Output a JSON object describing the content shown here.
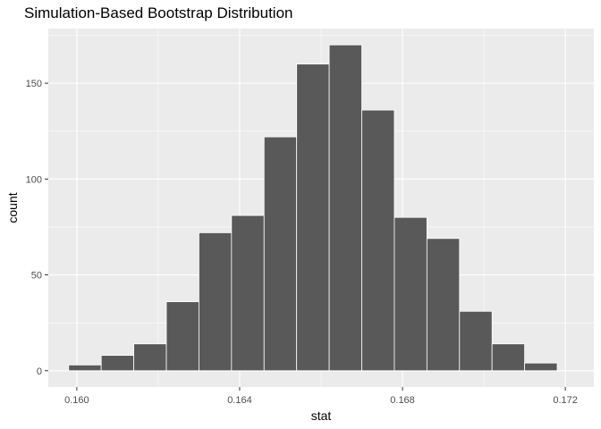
{
  "chart_data": {
    "type": "bar",
    "title": "Simulation-Based Bootstrap Distribution",
    "xlabel": "stat",
    "ylabel": "count",
    "xlim": [
      0.1593,
      0.1727
    ],
    "ylim": [
      -8.5,
      178.5
    ],
    "x_ticks": [
      0.16,
      0.164,
      0.168,
      0.172
    ],
    "x_tick_labels": [
      "0.160",
      "0.164",
      "0.168",
      "0.172"
    ],
    "y_ticks": [
      0,
      50,
      100,
      150
    ],
    "y_tick_labels": [
      "0",
      "50",
      "100",
      "150"
    ],
    "bin_width": 0.0008,
    "bins": [
      {
        "x0": 0.1598,
        "x1": 0.1606,
        "count": 3
      },
      {
        "x0": 0.1606,
        "x1": 0.1614,
        "count": 8
      },
      {
        "x0": 0.1614,
        "x1": 0.1622,
        "count": 14
      },
      {
        "x0": 0.1622,
        "x1": 0.163,
        "count": 36
      },
      {
        "x0": 0.163,
        "x1": 0.1638,
        "count": 72
      },
      {
        "x0": 0.1638,
        "x1": 0.1646,
        "count": 81
      },
      {
        "x0": 0.1646,
        "x1": 0.1654,
        "count": 122
      },
      {
        "x0": 0.1654,
        "x1": 0.1662,
        "count": 160
      },
      {
        "x0": 0.1662,
        "x1": 0.167,
        "count": 170
      },
      {
        "x0": 0.167,
        "x1": 0.1678,
        "count": 136
      },
      {
        "x0": 0.1678,
        "x1": 0.1686,
        "count": 80
      },
      {
        "x0": 0.1686,
        "x1": 0.1694,
        "count": 69
      },
      {
        "x0": 0.1694,
        "x1": 0.1702,
        "count": 31
      },
      {
        "x0": 0.1702,
        "x1": 0.171,
        "count": 14
      },
      {
        "x0": 0.171,
        "x1": 0.1718,
        "count": 4
      }
    ],
    "grid": true,
    "colors": {
      "panel": "#ebebeb",
      "grid": "#ffffff",
      "bar_fill": "#595959",
      "bar_stroke": "#ffffff"
    }
  }
}
